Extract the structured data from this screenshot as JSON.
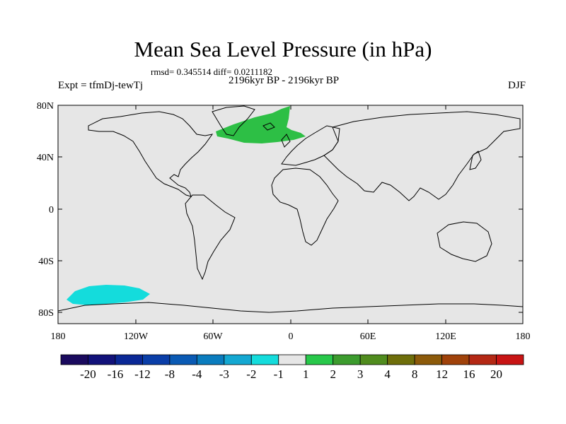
{
  "title": "Mean Sea Level Pressure (in hPa)",
  "stats": "rmsd= 0.345514 diff= 0.0211182",
  "period": "2196kyr BP - 2196kyr BP",
  "experiment": "Expt = tfmDj-tewTj",
  "season": "DJF",
  "lat_labels": [
    "80N",
    "40N",
    "0",
    "40S",
    "80S"
  ],
  "lon_labels": [
    "180",
    "120W",
    "60W",
    "0",
    "60E",
    "120E",
    "180"
  ],
  "colorbar": {
    "labels": [
      "-20",
      "-16",
      "-12",
      "-8",
      "-4",
      "-3",
      "-2",
      "-1",
      "1",
      "2",
      "3",
      "4",
      "8",
      "12",
      "16",
      "20"
    ],
    "colors": [
      "#1a0a5e",
      "#12127a",
      "#0a2896",
      "#0a3ea8",
      "#0a5ab4",
      "#0a7cbe",
      "#14a8d2",
      "#14dcdc",
      "#e6e6e6",
      "#28c84a",
      "#3c9c2e",
      "#508c1e",
      "#6e6e0a",
      "#8c5a0a",
      "#a0420a",
      "#b42814",
      "#c81414"
    ]
  },
  "colors": {
    "ocean_background": "#e6e6e6",
    "positive_anomaly": "#2dbf45",
    "negative_anomaly": "#14dcdc"
  }
}
